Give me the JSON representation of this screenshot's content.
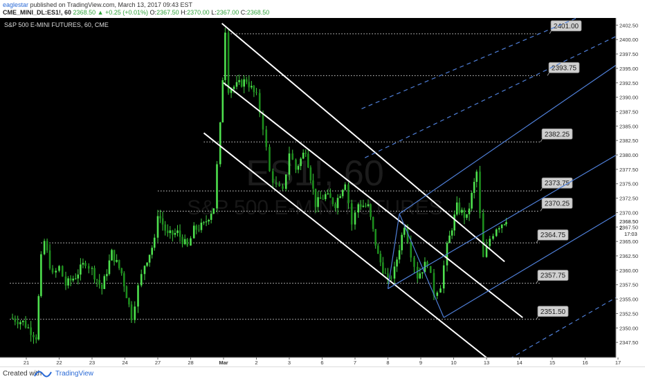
{
  "header": {
    "publisher": "eaglestar",
    "published_text": "published on TradingView.com, March 13, 2017 09:43 EST",
    "symbol_info": "CME_MINI_DL:ES1!, 60",
    "change": "2368.50 ▲ +0.25 (+0.01%)",
    "o_label": "O:",
    "o_value": "2367.50",
    "h_label": "H:",
    "h_value": "2370.00",
    "l_label": "L:",
    "l_value": "2367.00",
    "c_label": "C:",
    "c_value": "2368.50"
  },
  "footer": {
    "created_label": "Created with",
    "brand": "TradingView"
  },
  "chart_data": {
    "type": "candlestick",
    "title": "S&P 500 E-MINI FUTURES, 60, CME",
    "watermark": "ES1!, 60",
    "watermark_sub": "S&P 500 E-MINI FUTURES",
    "ylim": [
      2345,
      2403.5
    ],
    "y_ticks": [
      "2402.50",
      "2400.00",
      "2397.50",
      "2395.00",
      "2392.50",
      "2390.00",
      "2387.50",
      "2385.00",
      "2382.50",
      "2380.00",
      "2377.50",
      "2375.00",
      "2372.50",
      "2370.00",
      "2367.50",
      "2365.00",
      "2362.50",
      "2360.00",
      "2357.50",
      "2355.00",
      "2352.50",
      "2350.00",
      "2347.50"
    ],
    "last_price": "2368.50",
    "last_price_partial": "2:",
    "countdown": "17:03",
    "x_tick_labels": [
      "21",
      "22",
      "23",
      "24",
      "27",
      "28",
      "Mar",
      "2",
      "3",
      "6",
      "7",
      "8",
      "9",
      "10",
      "13",
      "14",
      "15",
      "16",
      "17"
    ],
    "x_tick_positions": [
      0,
      1,
      2,
      3,
      4,
      5,
      6,
      7,
      8,
      9,
      10,
      11,
      12,
      13,
      14,
      15,
      16,
      17,
      18
    ],
    "price_levels": [
      {
        "label": "2401.00",
        "value": 2401.0,
        "from_day": 6.05
      },
      {
        "label": "2393.75",
        "value": 2393.75,
        "from_day": 6.0
      },
      {
        "label": "2382.25",
        "value": 2382.25,
        "from_day": 5.4
      },
      {
        "label": "2373.75",
        "value": 2373.75,
        "from_day": 4.0
      },
      {
        "label": "2370.25",
        "value": 2370.25,
        "from_day": 4.0
      },
      {
        "label": "2364.75",
        "value": 2364.75,
        "from_day": 0.45
      },
      {
        "label": "2357.75",
        "value": 2357.75,
        "from_day": -0.5
      },
      {
        "label": "2351.50",
        "value": 2351.5,
        "from_day": -0.5
      }
    ],
    "down_channel": [
      {
        "from": [
          5.95,
          2402.8
        ],
        "to": [
          14.55,
          2361.5
        ]
      },
      {
        "from": [
          6.0,
          2392.5
        ],
        "to": [
          15.1,
          2351.8
        ]
      },
      {
        "from": [
          5.4,
          2383.8
        ],
        "to": [
          14.3,
          2343.5
        ]
      }
    ],
    "up_channel_solid": [
      {
        "from": [
          11.35,
          2369.8
        ],
        "to": [
          18.1,
          2396.2
        ]
      },
      {
        "from": [
          11.0,
          2356.8
        ],
        "to": [
          18.1,
          2380.5
        ]
      },
      {
        "from": [
          12.7,
          2351.8
        ],
        "to": [
          18.1,
          2370.2
        ]
      }
    ],
    "up_channel_dashed": [
      {
        "from": [
          10.2,
          2388.0
        ],
        "to": [
          18.1,
          2407.0
        ]
      },
      {
        "from": [
          10.3,
          2379.5
        ],
        "to": [
          18.1,
          2401.0
        ]
      },
      {
        "from": [
          14.5,
          2344.0
        ],
        "to": [
          18.1,
          2355.8
        ]
      }
    ],
    "pitchfork_handles": [
      {
        "from": [
          11.35,
          2369.8
        ],
        "to": [
          12.7,
          2351.8
        ]
      },
      {
        "from": [
          11.0,
          2356.8
        ],
        "to": [
          11.35,
          2369.8
        ]
      }
    ],
    "path": [
      [
        -0.5,
        2351.8
      ],
      [
        -0.1,
        2351.0
      ],
      [
        0.3,
        2348.5
      ],
      [
        0.45,
        2362.0
      ],
      [
        0.55,
        2365.0
      ],
      [
        0.8,
        2359.0
      ],
      [
        1.0,
        2360.5
      ],
      [
        1.2,
        2357.5
      ],
      [
        1.5,
        2359.0
      ],
      [
        1.8,
        2361.5
      ],
      [
        2.0,
        2360.0
      ],
      [
        2.3,
        2356.8
      ],
      [
        2.6,
        2363.0
      ],
      [
        2.9,
        2359.5
      ],
      [
        3.2,
        2352.0
      ],
      [
        3.4,
        2357.0
      ],
      [
        3.6,
        2361.0
      ],
      [
        3.9,
        2365.0
      ],
      [
        4.0,
        2370.0
      ],
      [
        4.3,
        2366.0
      ],
      [
        4.6,
        2366.5
      ],
      [
        4.9,
        2364.0
      ],
      [
        5.1,
        2367.0
      ],
      [
        5.4,
        2367.8
      ],
      [
        5.7,
        2371.0
      ],
      [
        5.9,
        2385.0
      ],
      [
        6.05,
        2401.8
      ],
      [
        6.15,
        2391.5
      ],
      [
        6.4,
        2392.0
      ],
      [
        6.7,
        2393.0
      ],
      [
        7.0,
        2390.0
      ],
      [
        7.2,
        2385.0
      ],
      [
        7.4,
        2377.0
      ],
      [
        7.6,
        2374.5
      ],
      [
        7.8,
        2373.5
      ],
      [
        8.0,
        2380.5
      ],
      [
        8.2,
        2377.5
      ],
      [
        8.5,
        2381.0
      ],
      [
        8.8,
        2371.5
      ],
      [
        9.1,
        2373.0
      ],
      [
        9.4,
        2371.5
      ],
      [
        9.7,
        2375.5
      ],
      [
        9.9,
        2368.0
      ],
      [
        10.1,
        2371.5
      ],
      [
        10.4,
        2371.0
      ],
      [
        10.7,
        2362.5
      ],
      [
        11.0,
        2358.0
      ],
      [
        11.2,
        2360.0
      ],
      [
        11.5,
        2368.0
      ],
      [
        11.7,
        2363.0
      ],
      [
        11.9,
        2359.0
      ],
      [
        12.2,
        2361.5
      ],
      [
        12.4,
        2356.0
      ],
      [
        12.6,
        2357.5
      ],
      [
        12.8,
        2364.0
      ],
      [
        13.1,
        2371.0
      ],
      [
        13.4,
        2369.0
      ],
      [
        13.7,
        2377.0
      ],
      [
        13.9,
        2362.0
      ],
      [
        14.1,
        2365.5
      ],
      [
        14.3,
        2367.5
      ],
      [
        14.55,
        2368.5
      ],
      [
        14.6,
        2369.0
      ]
    ]
  }
}
